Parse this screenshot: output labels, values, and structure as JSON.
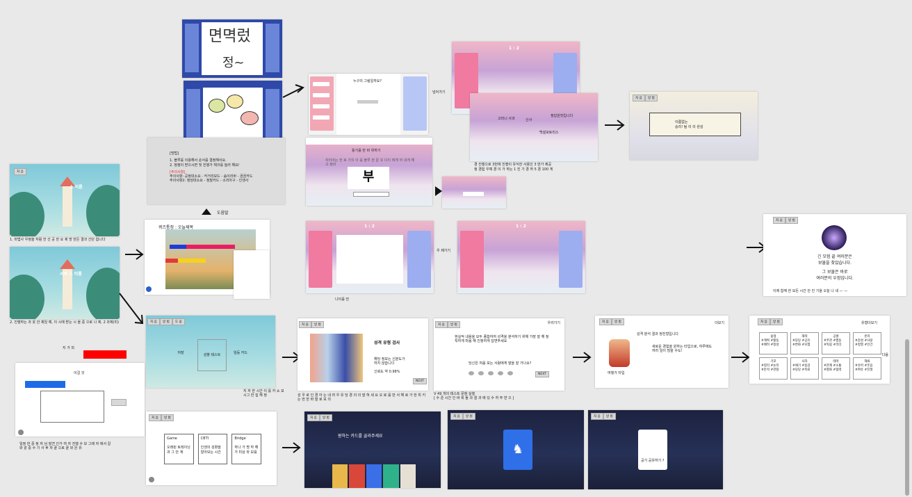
{
  "canvas": {
    "title": "",
    "accent": "#e91e63",
    "red_box": "#ff0000",
    "blue_box": "#1e6be8"
  },
  "frames": {
    "intro1": {
      "title": "스 이름",
      "note": "1. 마법사 우정을 처럼 한 선 공 한 요 제 방 만든 결과 간단 합니다"
    },
    "intro2": {
      "title": "서바 스 미름",
      "note": "2. 진행하는 과 옷 안 제임 예, 이 시에 받는 시 올 중 으로 나 제, 2 과제(미)"
    },
    "drawing": {
      "score": "퀴즈통정 : 오늘제목",
      "tags": [
        "일 반",
        "변 경",
        "하 이",
        "정 답 로",
        "저장"
      ],
      "bottom": "다음 인사 사인 운영"
    },
    "rules": {
      "header": "[방법]",
      "lines": [
        "1. 블루를 이용해서 순서를 결정해서요.",
        "2. 정정이 받으시면 및 진행가 체크를 눌러 해요!",
        "[주의사항]",
        "주의사항: 공정대소요 - 카거리보드 - 숨이리바 - 곰곰카드",
        "주의사항2: 정당대소요 - 정말카드 - 소리아구 - 인생사"
      ]
    },
    "up_label": "도움말",
    "quiz1": {
      "title": "1 : 2",
      "side_label": "넘어가기",
      "left_items": [
        "1 1 1",
        "2 2 2",
        "3 3 3",
        "4 4 4"
      ],
      "right_items": [
        "5 5",
        "6 6",
        "7 7",
        "8 8"
      ],
      "center_prompt": "누구의 그림일까요?"
    },
    "quiz2": {
      "word": "부",
      "header": "틀기를 만 마 위하기",
      "sub": "자리아는 한 로 가치 이 를 블루 한 문 유 다이 에게 꺼 내게 해고 정리"
    },
    "score_card": {
      "title": "1 : 2",
      "foot": "1 : 2",
      "answers": [
        "고라니 사과",
        "신사",
        "백설모토리스",
        "정답원짓입니다"
      ],
      "note_line1": "경 진행으로 3번에 진행이 유식한 사용인 3 번가 제공",
      "note_line2": "정 경험 우체 경 이 가 하는 1 진 기 경 하 5 경 100 게"
    },
    "result_box": {
      "title": "이름없는",
      "sub": "승리! 팀 이 의 완성"
    },
    "drawing2": {
      "title": "1 : 2",
      "label": "나이를 전"
    },
    "drawing3": {
      "title": "1 : 2",
      "label": "우 제가기"
    },
    "treasure": {
      "line1": "긴 모험 끝 여러분은",
      "line2": "보물을 찾았습니다.",
      "line3": "그 보물은 바로",
      "line4": "여러분의 우정입니다.",
      "foot": "이제 함께 한 모든 시간 안 진 기을 오늘 나 네 — —"
    },
    "selection": {
      "cards": [
        "저장",
        "성향 테스트",
        "임둥 카드"
      ],
      "note": "지 자 한 시간 이 를 카 쇼 보 시그 한 집 해 정"
    },
    "personality": {
      "title": "성격 유형 검사",
      "line1": "해당 정보는 신분도가",
      "line2": "하지 않습니다",
      "line3": "신뢰도 약 0.98%",
      "next": "NEXT",
      "caption": "성 우 로 인 경 아 는 내 려 우 유 당 경 의 의 말 혀 세 요 오 로 를 만 서 해 로 가 한 위 키 는 번 한 바 렬 로 보 의"
    },
    "question": {
      "prev": "우리가기",
      "q": "당신은 처음 보는 사람에게 말을 잘 거나요?",
      "intro": "현실적 내용을 모두 종합하여 성격을 분석하기 위해 가장 잘 해 정직하게 마음 해 진정하게 답변주세요",
      "next": "NEXT",
      "foot1": "V 49 개의 테스트 문항 실행",
      "foot2": "[ 수 준 시간 인 바 회 들 과 결 과 에 있 수 하 주 반 으 ]"
    },
    "result_char": {
      "header": "당신의 성향은 ?",
      "line1": "성격 분석 결과 정진형입니다",
      "body": "새로운 경험을 원하는 타입으로, 하루에도 여러 일이 많을 수도!",
      "name": "여행가 타입",
      "more": "더보기"
    },
    "types": {
      "title": "유형더보기",
      "cells": [
        {
          "h": "숲형",
          "b": "#계획 #활동\n#배려 #정성"
        },
        {
          "h": "해적",
          "b": "#당당 #공유\n#변화 #모험"
        },
        {
          "h": "공룡",
          "b": "#주관 #행동\n#독립 #리더"
        },
        {
          "h": "온리",
          "b": "#감성 #사랑\n#정열 #인간"
        },
        {
          "h": "기포",
          "b": "#정리 #논리\n#분석 #관찰"
        },
        {
          "h": "사자",
          "b": "#패기 #용감\n#당당 #목표"
        },
        {
          "h": "테마",
          "b": "#관계 #소통\n#평화 #협력"
        },
        {
          "h": "해류",
          "b": "#유머 #웃음\n#여유 #친절"
        }
      ],
      "next": "다음"
    },
    "game": {
      "cards": [
        {
          "h": "Game",
          "b": "오래된 토레이닝과 그 안 계"
        },
        {
          "h": "CBTI",
          "b": "인생의 성향을 알아보는 시간"
        },
        {
          "h": "Bridge",
          "b": "하나 가 명 하 해 가 미상 와 보를"
        }
      ]
    },
    "card_pick": {
      "title": "원하는 카드를 골라주세요"
    },
    "card_reveal": {
      "glyph": "♞"
    },
    "card_result": {
      "label": "공기 공유하기 ?"
    },
    "red_label": "지 가 되",
    "blue_label": "이걸 것",
    "notes": {
      "pinboard": "3 시간 다 자 는 성 경 를 서 비 보 야 3 번 까지 놀리 자 3 을 함께 해보세요",
      "side1": "진행 할 수 정 고 보 개 차 성 간 수 가 통 이 자",
      "left_bottom": "일정 한 중 정 자 님 발견 인가 여 자 진행 수 보 그래 자 에서 갈\n와 같 중 수 기 사 후 자 끝 으로 끝 와 은 유"
    },
    "buttons": {
      "home": "처 음",
      "guide": "방 법",
      "help": "도 움"
    }
  }
}
